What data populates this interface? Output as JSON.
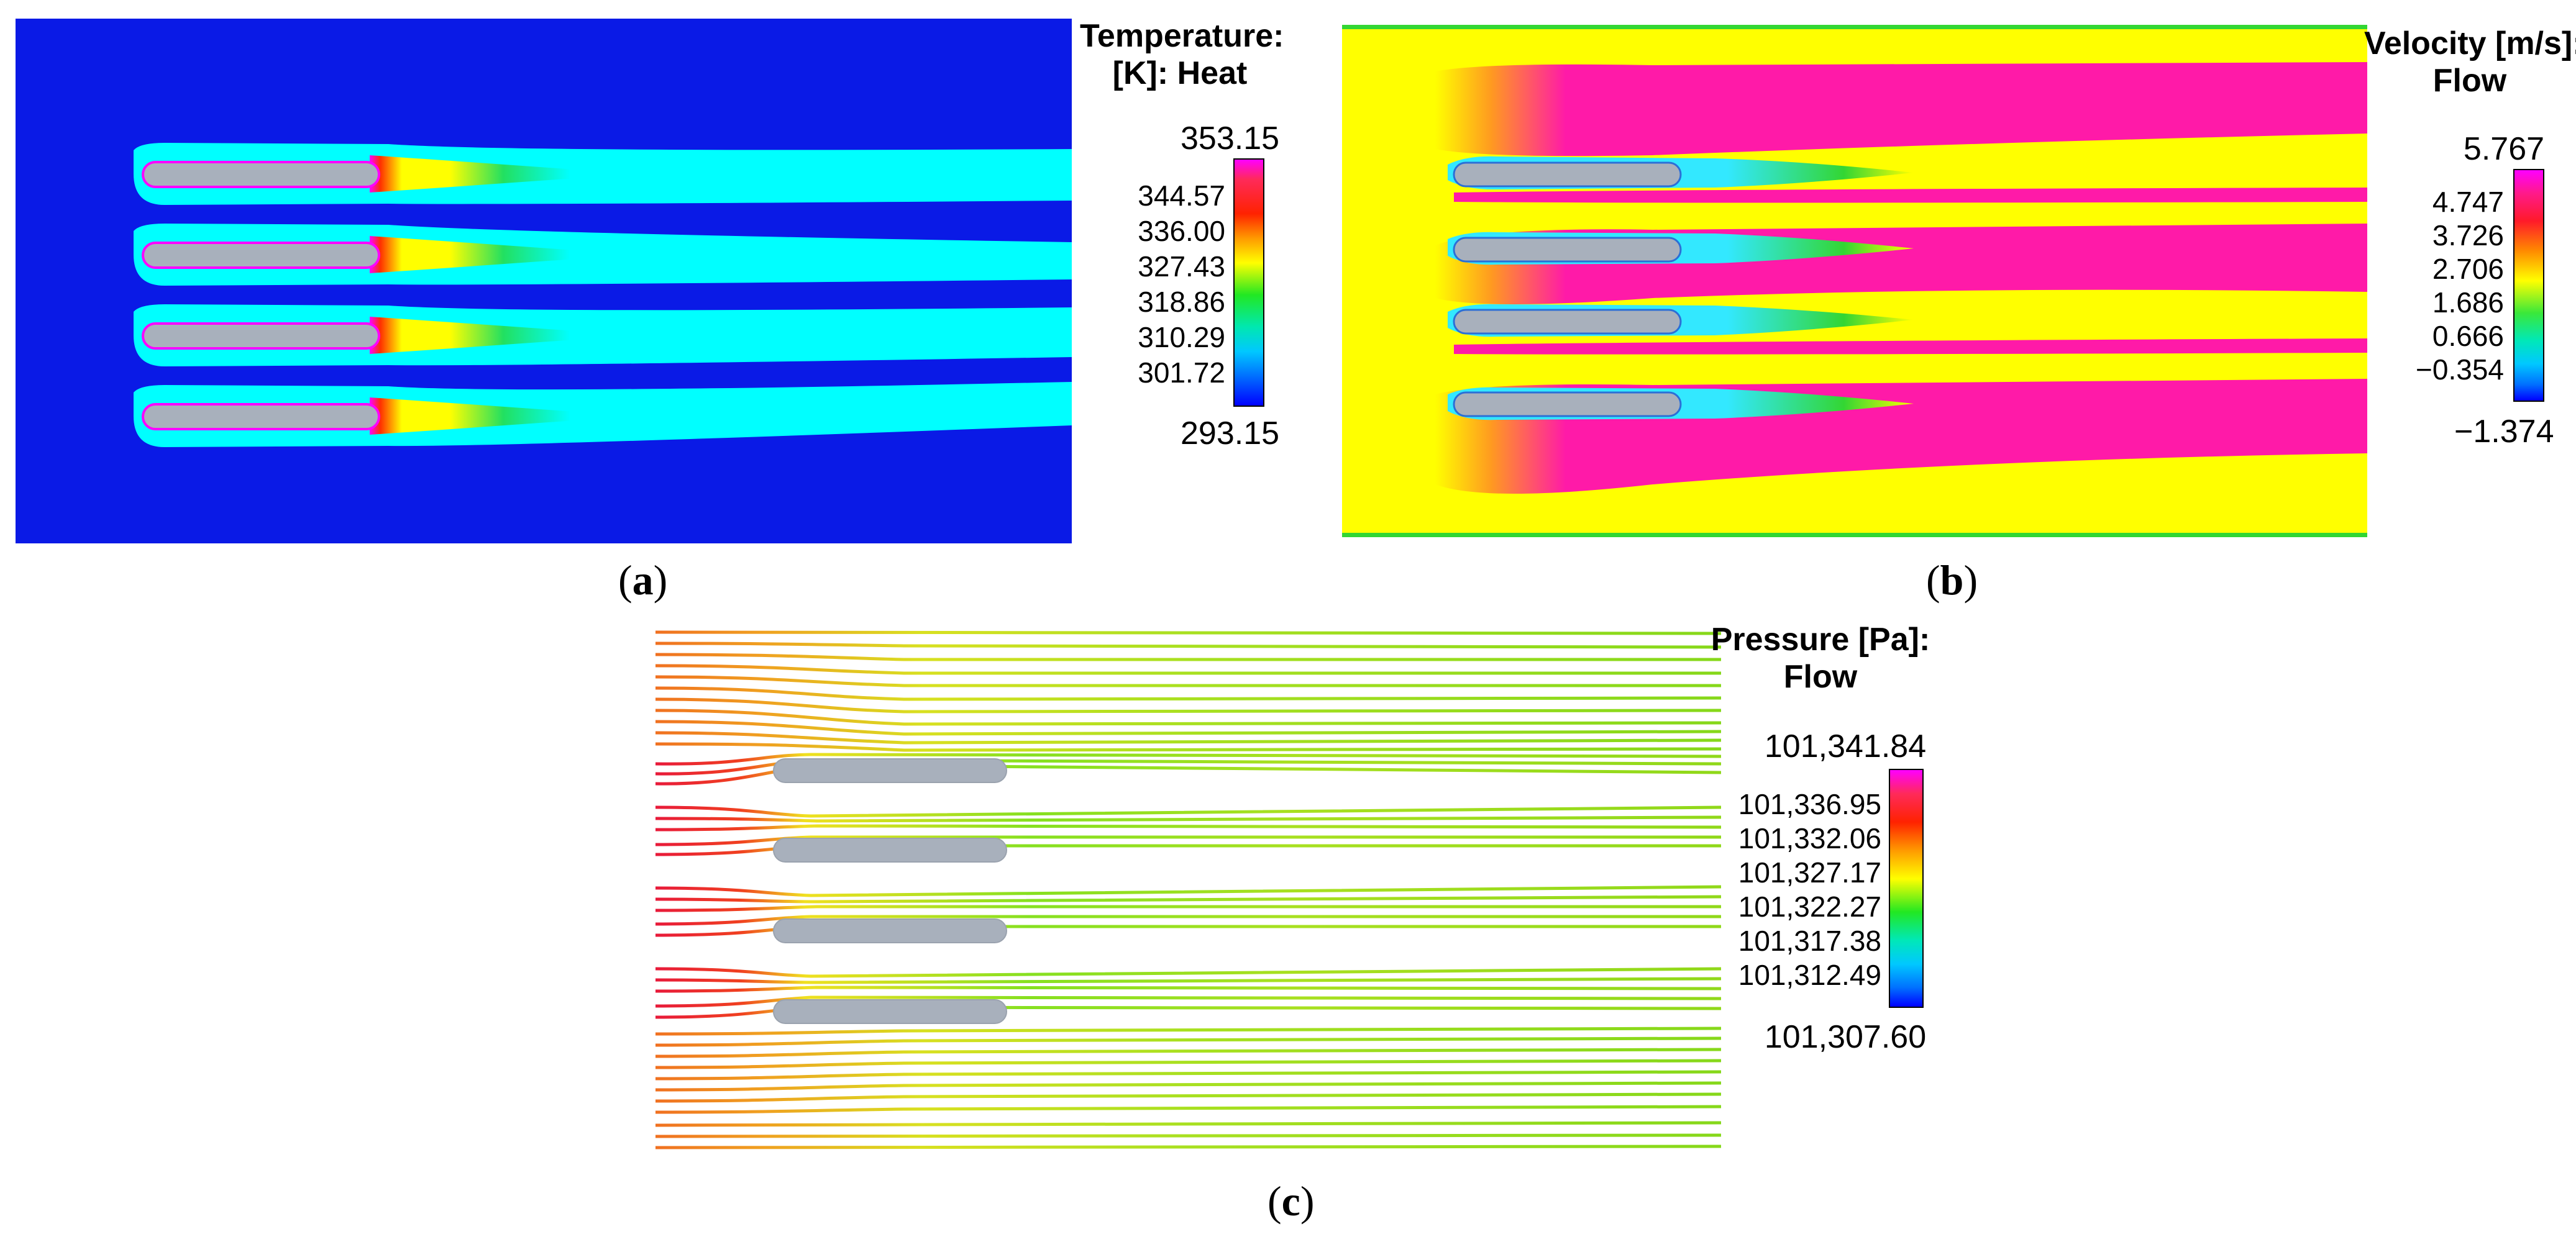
{
  "panels": {
    "a": {
      "caption_open": "(",
      "caption_letter": "a",
      "caption_close": ")",
      "legend_title_line1": "Temperature:",
      "legend_title_line2": "[K]: Heat",
      "legend_max": "353.15",
      "legend_min": "293.15",
      "legend_ticks": [
        "344.57",
        "336.00",
        "327.43",
        "318.86",
        "310.29",
        "301.72"
      ],
      "colors": {
        "background": "#0a1ae6",
        "wake": "#00ffff",
        "hot": "#ff00ff",
        "warm": "#ffff00",
        "mid": "#2ee82e",
        "plate": "#a8b0bc"
      }
    },
    "b": {
      "caption_open": "(",
      "caption_letter": "b",
      "caption_close": ")",
      "legend_title_line1": "Velocity [m/s]:",
      "legend_title_line2": "Flow",
      "legend_max": "5.767",
      "legend_min": "−1.374",
      "legend_ticks": [
        "4.747",
        "3.726",
        "2.706",
        "1.686",
        "0.666",
        "−0.354"
      ],
      "colors": {
        "inlet": "#ffff00",
        "jet": "#ff1aa8",
        "wake": "#33e8ff",
        "edge": "#33d633",
        "plate": "#a8b0bc"
      }
    },
    "c": {
      "caption_open": "(",
      "caption_letter": "c",
      "caption_close": ")",
      "legend_title_line1": "Pressure [Pa]:",
      "legend_title_line2": "Flow",
      "legend_max": "101,341.84",
      "legend_min": "101,307.60",
      "legend_ticks": [
        "101,336.95",
        "101,332.06",
        "101,327.17",
        "101,322.27",
        "101,317.38",
        "101,312.49"
      ],
      "colors": {
        "inlet": "#f07020",
        "high": "#e81a3a",
        "mid": "#f0e020",
        "low": "#86d81a",
        "plate": "#a8b0bc"
      }
    }
  }
}
